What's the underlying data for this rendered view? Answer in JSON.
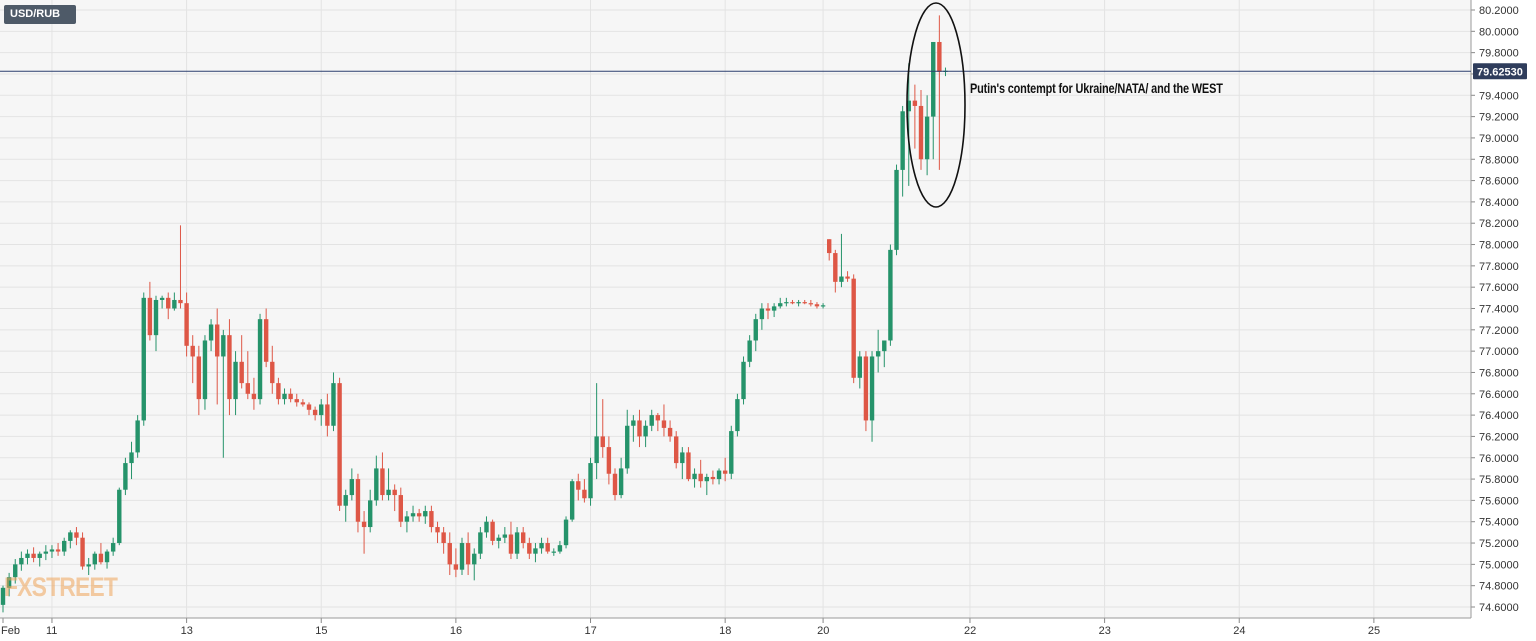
{
  "symbol": "USD/RUB",
  "current_price": "79.62530",
  "annotation": "Putin's contempt for Ukraine/NATA/ and the WEST",
  "logo": "FXSTREET",
  "colors": {
    "up": "#25936a",
    "down": "#de5746",
    "grid": "#e3e3e3",
    "background": "#f6f6f6",
    "price_line": "#2b3f6e",
    "price_label_bg": "#2f3d5c"
  },
  "chart_data": {
    "type": "candlestick",
    "title": "",
    "xlabel": "",
    "ylabel": "",
    "ylim": [
      74.5,
      80.25
    ],
    "y_ticks": [
      "74.6000",
      "74.8000",
      "75.0000",
      "75.2000",
      "75.4000",
      "75.6000",
      "75.8000",
      "76.0000",
      "76.2000",
      "76.4000",
      "76.6000",
      "76.8000",
      "77.0000",
      "77.2000",
      "77.4000",
      "77.6000",
      "77.8000",
      "78.0000",
      "78.2000",
      "78.4000",
      "78.6000",
      "78.8000",
      "79.0000",
      "79.2000",
      "79.4000",
      "79.6000",
      "79.8000",
      "80.0000",
      "80.2000"
    ],
    "x_ticks": [
      {
        "label": "Feb",
        "i": 0
      },
      {
        "label": "11",
        "i": 8
      },
      {
        "label": "13",
        "i": 30
      },
      {
        "label": "15",
        "i": 52
      },
      {
        "label": "16",
        "i": 74
      },
      {
        "label": "17",
        "i": 96
      },
      {
        "label": "18",
        "i": 118
      },
      {
        "label": "20",
        "i": 134
      },
      {
        "label": "22",
        "i": 158
      },
      {
        "label": "23",
        "i": 180
      },
      {
        "label": "24",
        "i": 202
      },
      {
        "label": "25",
        "i": 224
      }
    ],
    "grid": true,
    "current_price": 79.6253,
    "candles": [
      [
        74.62,
        74.8,
        74.55,
        74.78
      ],
      [
        74.78,
        74.92,
        74.7,
        74.88
      ],
      [
        74.88,
        75.05,
        74.82,
        75.0
      ],
      [
        75.0,
        75.12,
        74.94,
        75.06
      ],
      [
        75.06,
        75.14,
        75.0,
        75.1
      ],
      [
        75.1,
        75.16,
        75.02,
        75.06
      ],
      [
        75.06,
        75.12,
        74.98,
        75.1
      ],
      [
        75.1,
        75.18,
        75.04,
        75.12
      ],
      [
        75.12,
        75.18,
        75.06,
        75.14
      ],
      [
        75.14,
        75.2,
        75.08,
        75.12
      ],
      [
        75.12,
        75.25,
        75.08,
        75.22
      ],
      [
        75.22,
        75.32,
        75.15,
        75.3
      ],
      [
        75.3,
        75.35,
        75.18,
        75.25
      ],
      [
        75.25,
        75.3,
        74.95,
        74.98
      ],
      [
        74.98,
        75.06,
        74.9,
        75.0
      ],
      [
        75.0,
        75.12,
        74.95,
        75.1
      ],
      [
        75.1,
        75.2,
        75.0,
        75.02
      ],
      [
        75.02,
        75.14,
        74.96,
        75.12
      ],
      [
        75.12,
        75.25,
        75.08,
        75.2
      ],
      [
        75.2,
        75.72,
        75.18,
        75.7
      ],
      [
        75.7,
        76.0,
        75.65,
        75.95
      ],
      [
        75.95,
        76.15,
        75.8,
        76.05
      ],
      [
        76.05,
        76.4,
        76.0,
        76.35
      ],
      [
        76.35,
        77.55,
        76.3,
        77.5
      ],
      [
        77.5,
        77.65,
        77.1,
        77.15
      ],
      [
        77.15,
        77.52,
        77.0,
        77.48
      ],
      [
        77.48,
        77.52,
        77.4,
        77.5
      ],
      [
        77.5,
        77.55,
        77.3,
        77.4
      ],
      [
        77.4,
        77.55,
        77.38,
        77.48
      ],
      [
        77.48,
        78.18,
        77.4,
        77.45
      ],
      [
        77.45,
        77.55,
        76.95,
        77.05
      ],
      [
        77.05,
        77.15,
        76.7,
        76.95
      ],
      [
        76.95,
        77.05,
        76.4,
        76.55
      ],
      [
        76.55,
        77.15,
        76.45,
        77.1
      ],
      [
        77.1,
        77.3,
        77.0,
        77.25
      ],
      [
        77.25,
        77.4,
        76.5,
        76.95
      ],
      [
        76.95,
        77.2,
        76.0,
        77.15
      ],
      [
        77.15,
        77.3,
        76.4,
        76.55
      ],
      [
        76.55,
        77.0,
        76.4,
        76.9
      ],
      [
        76.9,
        77.15,
        76.65,
        76.7
      ],
      [
        76.7,
        77.0,
        76.55,
        76.6
      ],
      [
        76.6,
        76.75,
        76.45,
        76.55
      ],
      [
        76.55,
        77.35,
        76.5,
        77.3
      ],
      [
        77.3,
        77.4,
        76.85,
        76.9
      ],
      [
        76.9,
        77.05,
        76.6,
        76.7
      ],
      [
        76.7,
        76.75,
        76.5,
        76.55
      ],
      [
        76.55,
        76.65,
        76.5,
        76.6
      ],
      [
        76.6,
        76.65,
        76.52,
        76.55
      ],
      [
        76.55,
        76.6,
        76.48,
        76.52
      ],
      [
        76.52,
        76.55,
        76.48,
        76.5
      ],
      [
        76.5,
        76.52,
        76.4,
        76.45
      ],
      [
        76.45,
        76.48,
        76.35,
        76.4
      ],
      [
        76.4,
        76.55,
        76.3,
        76.5
      ],
      [
        76.5,
        76.6,
        76.2,
        76.3
      ],
      [
        76.3,
        76.8,
        76.25,
        76.7
      ],
      [
        76.7,
        76.75,
        75.5,
        75.55
      ],
      [
        75.55,
        75.7,
        75.4,
        75.65
      ],
      [
        75.65,
        75.9,
        75.6,
        75.8
      ],
      [
        75.8,
        75.85,
        75.3,
        75.4
      ],
      [
        75.4,
        75.5,
        75.1,
        75.35
      ],
      [
        75.35,
        75.7,
        75.3,
        75.6
      ],
      [
        75.6,
        76.02,
        75.55,
        75.9
      ],
      [
        75.9,
        76.05,
        75.6,
        75.65
      ],
      [
        75.65,
        75.9,
        75.6,
        75.7
      ],
      [
        75.7,
        75.75,
        75.5,
        75.65
      ],
      [
        75.65,
        75.72,
        75.35,
        75.4
      ],
      [
        75.4,
        75.5,
        75.3,
        75.45
      ],
      [
        75.45,
        75.55,
        75.4,
        75.48
      ],
      [
        75.48,
        75.52,
        75.4,
        75.45
      ],
      [
        75.45,
        75.55,
        75.38,
        75.5
      ],
      [
        75.5,
        75.55,
        75.3,
        75.35
      ],
      [
        75.35,
        75.4,
        75.2,
        75.3
      ],
      [
        75.3,
        75.35,
        75.1,
        75.2
      ],
      [
        75.2,
        75.3,
        74.9,
        75.0
      ],
      [
        75.0,
        75.15,
        74.88,
        74.95
      ],
      [
        74.95,
        75.25,
        74.9,
        75.2
      ],
      [
        75.2,
        75.3,
        74.9,
        75.0
      ],
      [
        75.0,
        75.15,
        74.85,
        75.1
      ],
      [
        75.1,
        75.35,
        75.05,
        75.3
      ],
      [
        75.3,
        75.45,
        75.25,
        75.4
      ],
      [
        75.4,
        75.42,
        75.18,
        75.22
      ],
      [
        75.22,
        75.28,
        75.15,
        75.25
      ],
      [
        75.25,
        75.35,
        75.2,
        75.28
      ],
      [
        75.28,
        75.4,
        75.05,
        75.1
      ],
      [
        75.1,
        75.35,
        75.05,
        75.3
      ],
      [
        75.3,
        75.35,
        75.15,
        75.2
      ],
      [
        75.2,
        75.25,
        75.05,
        75.1
      ],
      [
        75.1,
        75.2,
        75.02,
        75.15
      ],
      [
        75.15,
        75.25,
        75.1,
        75.2
      ],
      [
        75.2,
        75.25,
        75.1,
        75.12
      ],
      [
        75.12,
        75.15,
        75.08,
        75.12
      ],
      [
        75.12,
        75.22,
        75.1,
        75.18
      ],
      [
        75.18,
        75.45,
        75.15,
        75.42
      ],
      [
        75.42,
        75.8,
        75.4,
        75.78
      ],
      [
        75.78,
        75.85,
        75.6,
        75.7
      ],
      [
        75.7,
        75.8,
        75.58,
        75.62
      ],
      [
        75.62,
        76.0,
        75.55,
        75.95
      ],
      [
        75.95,
        76.7,
        75.8,
        76.2
      ],
      [
        76.2,
        76.55,
        76.0,
        76.1
      ],
      [
        76.1,
        76.2,
        75.75,
        75.85
      ],
      [
        75.85,
        75.9,
        75.6,
        75.65
      ],
      [
        75.65,
        76.0,
        75.62,
        75.9
      ],
      [
        75.9,
        76.45,
        75.85,
        76.3
      ],
      [
        76.3,
        76.4,
        76.15,
        76.35
      ],
      [
        76.35,
        76.45,
        76.1,
        76.2
      ],
      [
        76.2,
        76.35,
        76.1,
        76.3
      ],
      [
        76.3,
        76.45,
        76.25,
        76.4
      ],
      [
        76.4,
        76.42,
        76.25,
        76.35
      ],
      [
        76.35,
        76.5,
        76.2,
        76.28
      ],
      [
        76.28,
        76.35,
        76.15,
        76.2
      ],
      [
        76.2,
        76.25,
        75.9,
        75.95
      ],
      [
        75.95,
        76.1,
        75.8,
        76.05
      ],
      [
        76.05,
        76.1,
        75.78,
        75.8
      ],
      [
        75.8,
        75.9,
        75.72,
        75.85
      ],
      [
        75.85,
        75.98,
        75.72,
        75.78
      ],
      [
        75.78,
        75.85,
        75.65,
        75.82
      ],
      [
        75.82,
        75.88,
        75.75,
        75.8
      ],
      [
        75.8,
        75.9,
        75.75,
        75.88
      ],
      [
        75.88,
        76.0,
        75.78,
        75.85
      ],
      [
        75.85,
        76.3,
        75.8,
        76.25
      ],
      [
        76.25,
        76.6,
        76.2,
        76.55
      ],
      [
        76.55,
        76.95,
        76.5,
        76.9
      ],
      [
        76.9,
        77.15,
        76.85,
        77.1
      ],
      [
        77.1,
        77.35,
        77.0,
        77.3
      ],
      [
        77.3,
        77.45,
        77.2,
        77.4
      ],
      [
        77.4,
        77.45,
        77.3,
        77.38
      ],
      [
        77.38,
        77.45,
        77.32,
        77.42
      ],
      [
        77.42,
        77.5,
        77.4,
        77.45
      ],
      [
        77.45,
        77.5,
        77.42,
        77.46
      ],
      [
        77.46,
        77.48,
        77.44,
        77.45
      ],
      [
        77.45,
        77.48,
        77.42,
        77.46
      ],
      [
        77.46,
        77.48,
        77.44,
        77.45
      ],
      [
        77.45,
        77.48,
        77.42,
        77.44
      ],
      [
        77.44,
        77.46,
        77.4,
        77.42
      ],
      [
        77.42,
        77.45,
        77.4,
        77.43
      ],
      [
        78.05,
        78.05,
        77.85,
        77.92
      ],
      [
        77.92,
        77.95,
        77.55,
        77.65
      ],
      [
        77.65,
        78.1,
        77.6,
        77.7
      ],
      [
        77.7,
        77.75,
        77.65,
        77.68
      ],
      [
        77.68,
        77.72,
        76.7,
        76.75
      ],
      [
        76.75,
        77.0,
        76.65,
        76.95
      ],
      [
        76.95,
        77.0,
        76.25,
        76.35
      ],
      [
        76.35,
        77.0,
        76.15,
        76.95
      ],
      [
        76.95,
        77.2,
        76.8,
        77.0
      ],
      [
        77.0,
        77.1,
        76.85,
        77.1
      ],
      [
        77.1,
        78.0,
        77.05,
        77.95
      ],
      [
        77.95,
        78.75,
        77.9,
        78.7
      ],
      [
        78.7,
        79.3,
        78.45,
        79.25
      ],
      [
        79.25,
        79.7,
        78.55,
        79.35
      ],
      [
        79.35,
        79.5,
        78.9,
        79.3
      ],
      [
        79.3,
        79.45,
        78.7,
        78.8
      ],
      [
        78.8,
        79.4,
        78.65,
        79.2
      ],
      [
        79.2,
        79.9,
        78.8,
        79.9
      ],
      [
        79.9,
        80.15,
        78.7,
        79.62
      ],
      [
        79.62,
        79.66,
        79.58,
        79.63
      ]
    ]
  }
}
